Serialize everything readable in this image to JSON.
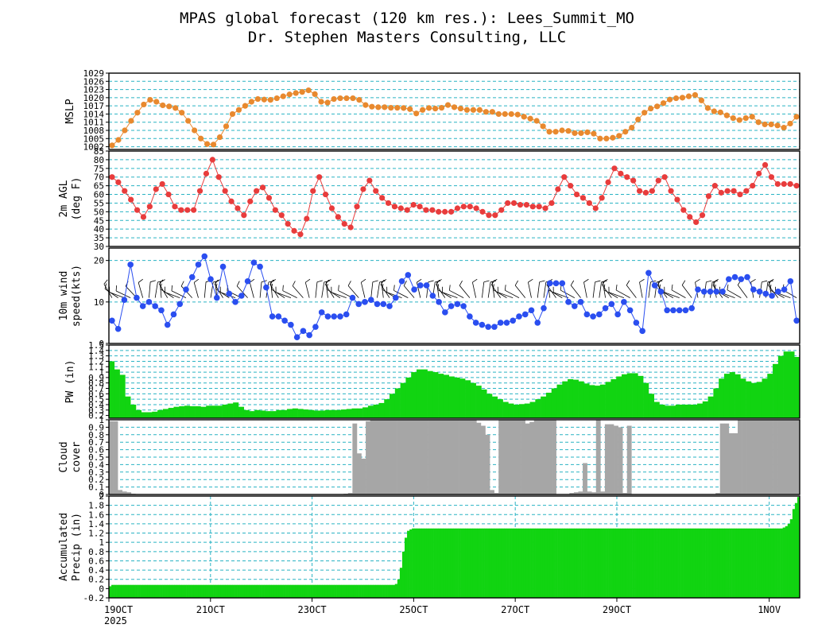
{
  "title": {
    "line1": "MPAS global forecast (120 km res.): Lees_Summit_MO",
    "line2": "Dr. Stephen Masters Consulting, LLC"
  },
  "colors": {
    "grid": "#2ab3c4",
    "mslp": "#e8892e",
    "temp": "#e83c3c",
    "wind": "#2a4ef0",
    "pw": "#11d411",
    "cloud": "#a6a6a6",
    "precip": "#11d411"
  },
  "chart_data": [
    {
      "type": "line",
      "id": "mslp",
      "ylabel": [
        "MSLP"
      ],
      "ylim": [
        1001,
        1029
      ],
      "ticks": [
        1002,
        1005,
        1008,
        1011,
        1014,
        1017,
        1020,
        1023,
        1026,
        1029
      ],
      "values": [
        1002.5,
        1004.5,
        1008,
        1011.5,
        1014.5,
        1017.5,
        1019.2,
        1018.5,
        1017.2,
        1016.8,
        1016.2,
        1014.5,
        1011.5,
        1008,
        1005,
        1003,
        1002.8,
        1005.5,
        1009.5,
        1014,
        1015.5,
        1017,
        1018.5,
        1019.5,
        1019.3,
        1019.2,
        1019.8,
        1020.5,
        1021.2,
        1021.7,
        1022.1,
        1022.7,
        1021.3,
        1018.5,
        1018.2,
        1019.5,
        1019.8,
        1019.8,
        1019.8,
        1019.2,
        1017.3,
        1016.7,
        1016.5,
        1016.5,
        1016.3,
        1016.3,
        1016.2,
        1015.8,
        1014.2,
        1015.5,
        1016.2,
        1016,
        1016.3,
        1017.3,
        1016.5,
        1016,
        1015.5,
        1015.5,
        1015.5,
        1014.8,
        1014.8,
        1014,
        1014,
        1014,
        1013.8,
        1013,
        1012.3,
        1011.5,
        1009.5,
        1007.5,
        1007.5,
        1008,
        1007.8,
        1007,
        1007,
        1007.3,
        1006.8,
        1005,
        1005,
        1005.3,
        1006,
        1007.5,
        1009,
        1012,
        1014.5,
        1016,
        1016.8,
        1018,
        1019.3,
        1019.8,
        1020,
        1020.5,
        1021,
        1019,
        1016.2,
        1015,
        1014.6,
        1013.5,
        1012.5,
        1011.8,
        1012.5,
        1013,
        1011,
        1010.2,
        1010.2,
        1009.8,
        1009,
        1010.5,
        1013
      ]
    },
    {
      "type": "line",
      "id": "temp",
      "ylabel": [
        "2m AGL",
        "(deg F)"
      ],
      "ylim": [
        30,
        85
      ],
      "ticks": [
        30,
        35,
        40,
        45,
        50,
        55,
        60,
        65,
        70,
        75,
        80,
        85
      ],
      "values": [
        70,
        67,
        62,
        57,
        51,
        47,
        53,
        63,
        66,
        60,
        53,
        51,
        51,
        51,
        62,
        72,
        80,
        70,
        62,
        56,
        52,
        48,
        56,
        62,
        64,
        58,
        51,
        48,
        43,
        39,
        37,
        46,
        62,
        70,
        60,
        52,
        47,
        43,
        41,
        53,
        63,
        68,
        62,
        58,
        55,
        53,
        52,
        51,
        54,
        53,
        51,
        51,
        50,
        50,
        50,
        52,
        53,
        53,
        52,
        50,
        48,
        48,
        51,
        55,
        55,
        54,
        54,
        53,
        53,
        52,
        55,
        63,
        70,
        65,
        60,
        58,
        55,
        52,
        58,
        67,
        75,
        72,
        70,
        68,
        62,
        61,
        62,
        68,
        70,
        62,
        57,
        51,
        47,
        44,
        48,
        59,
        65,
        61,
        62,
        62,
        60,
        62,
        65,
        72,
        77,
        70,
        66,
        66,
        66,
        65
      ]
    },
    {
      "type": "line",
      "id": "wind",
      "ylabel": [
        "10m wind",
        "speed(kts)"
      ],
      "ylim": [
        0,
        23
      ],
      "ticks": [
        0,
        10,
        20
      ],
      "values": [
        5.5,
        3.5,
        10.5,
        19,
        11,
        9,
        10,
        9,
        8,
        4.5,
        7,
        9.5,
        13,
        16,
        19,
        21,
        15.5,
        11,
        18.5,
        12,
        10,
        11.5,
        15,
        19.5,
        18.5,
        13.5,
        6.5,
        6.5,
        5.5,
        4.5,
        1.5,
        3,
        2,
        4,
        7.5,
        6.5,
        6.5,
        6.5,
        7,
        11,
        9.5,
        10,
        10.5,
        9.5,
        9.5,
        9,
        11,
        15,
        16.5,
        13,
        14,
        14,
        11.5,
        10,
        7.5,
        9,
        9.5,
        9,
        6.5,
        5,
        4.5,
        4,
        4,
        5,
        5,
        5.5,
        6.5,
        7,
        8,
        5,
        8.5,
        14.5,
        14.5,
        14.5,
        10,
        9,
        10,
        7,
        6.5,
        7,
        8.5,
        9.5,
        7,
        10,
        8,
        5,
        3,
        17,
        14,
        12.5,
        8,
        8,
        8,
        8,
        8.5,
        13,
        12.5,
        12.5,
        12.5,
        12.5,
        15.5,
        16,
        15.5,
        16,
        13,
        12.5,
        12,
        11.5,
        12.5,
        13,
        15,
        5.5
      ]
    },
    {
      "type": "bar",
      "id": "pw",
      "ylabel": [
        "PW (in)"
      ],
      "ylim": [
        0.15,
        1.5
      ],
      "ticks": [
        0.2,
        0.3,
        0.4,
        0.5,
        0.6,
        0.7,
        0.8,
        0.9,
        1,
        1.1,
        1.2,
        1.3,
        1.4,
        1.5
      ],
      "tick_labels": [
        "0.2",
        "0.3",
        "0.4",
        "0.5",
        "0.6",
        "0.7",
        "0.8",
        "0.9",
        "1",
        "1.1",
        "1.2",
        "1.3",
        "1.4",
        "1.5"
      ],
      "values": [
        1.2,
        1.05,
        0.95,
        0.55,
        0.4,
        0.3,
        0.26,
        0.26,
        0.27,
        0.3,
        0.32,
        0.34,
        0.36,
        0.37,
        0.38,
        0.37,
        0.37,
        0.36,
        0.38,
        0.38,
        0.38,
        0.4,
        0.42,
        0.44,
        0.36,
        0.3,
        0.28,
        0.3,
        0.29,
        0.28,
        0.28,
        0.3,
        0.3,
        0.32,
        0.33,
        0.32,
        0.31,
        0.3,
        0.29,
        0.29,
        0.3,
        0.3,
        0.3,
        0.31,
        0.32,
        0.33,
        0.33,
        0.35,
        0.38,
        0.4,
        0.43,
        0.5,
        0.6,
        0.7,
        0.8,
        0.9,
        1,
        1.05,
        1.05,
        1.02,
        1,
        0.97,
        0.95,
        0.92,
        0.9,
        0.88,
        0.85,
        0.8,
        0.75,
        0.68,
        0.6,
        0.55,
        0.5,
        0.45,
        0.42,
        0.4,
        0.41,
        0.42,
        0.45,
        0.5,
        0.55,
        0.62,
        0.7,
        0.77,
        0.83,
        0.87,
        0.86,
        0.83,
        0.79,
        0.76,
        0.75,
        0.77,
        0.82,
        0.87,
        0.92,
        0.96,
        0.98,
        0.98,
        0.93,
        0.8,
        0.6,
        0.45,
        0.4,
        0.38,
        0.38,
        0.4,
        0.4,
        0.4,
        0.4,
        0.42,
        0.46,
        0.55,
        0.7,
        0.88,
        0.97,
        1,
        0.96,
        0.88,
        0.83,
        0.8,
        0.82,
        0.88,
        0.97,
        1.15,
        1.3,
        1.38,
        1.38,
        1.28
      ]
    },
    {
      "type": "bar",
      "id": "cloud",
      "ylabel": [
        "Cloud",
        "cover"
      ],
      "ylim": [
        0,
        1
      ],
      "ticks": [
        0,
        0.1,
        0.2,
        0.3,
        0.4,
        0.5,
        0.6,
        0.7,
        0.8,
        0.9,
        1
      ],
      "tick_labels": [
        "0",
        "0.1",
        "0.2",
        "0.3",
        "0.4",
        "0.5",
        "0.6",
        "0.7",
        "0.8",
        "0.9",
        "1"
      ],
      "values": [
        0.98,
        0.98,
        0.06,
        0.04,
        0.03,
        0.01,
        0,
        0,
        0,
        0,
        0,
        0,
        0,
        0,
        0,
        0,
        0,
        0,
        0,
        0,
        0,
        0,
        0,
        0,
        0,
        0,
        0,
        0,
        0,
        0,
        0,
        0,
        0,
        0,
        0,
        0,
        0,
        0,
        0,
        0,
        0,
        0,
        0,
        0,
        0,
        0,
        0,
        0,
        0,
        0,
        0,
        0,
        0,
        0.01,
        0.02,
        0.95,
        0.55,
        0.48,
        0.98,
        1,
        1,
        1,
        1,
        1,
        1,
        1,
        1,
        1,
        1,
        1,
        1,
        1,
        1,
        1,
        1,
        1,
        1,
        1,
        1,
        1,
        1,
        1,
        1,
        0.96,
        0.92,
        0.8,
        0.06,
        0.02,
        1,
        1,
        1,
        1,
        1,
        1,
        0.95,
        0.97,
        1,
        1,
        1,
        1,
        1,
        0,
        0,
        0,
        0.02,
        0.03,
        0.04,
        0.42,
        0.04,
        0.03,
        1,
        0.04,
        0.94,
        0.94,
        0.92,
        0.9,
        0.02,
        0.92,
        0,
        0,
        0,
        0,
        0,
        0,
        0,
        0,
        0,
        0,
        0,
        0,
        0,
        0,
        0,
        0,
        0,
        0,
        0,
        0.02,
        0.95,
        0.95,
        0.82,
        0.82,
        1,
        1,
        1,
        1,
        1,
        1,
        1,
        1,
        1,
        1,
        1,
        1,
        1,
        1
      ]
    },
    {
      "type": "area",
      "id": "precip",
      "ylabel": [
        "Accumulated",
        "Precip (in)"
      ],
      "ylim": [
        -0.2,
        2
      ],
      "ticks": [
        -0.2,
        0,
        0.2,
        0.4,
        0.6,
        0.8,
        1,
        1.2,
        1.4,
        1.6,
        1.8,
        2
      ],
      "tick_labels": [
        "-0.2",
        "0",
        "0.2",
        "0.4",
        "0.6",
        "0.8",
        "1",
        "1.2",
        "1.4",
        "1.6",
        "1.8",
        "2"
      ],
      "values": [
        0.05,
        0.08,
        0.08,
        0.08,
        0.08,
        0.08,
        0.08,
        0.08,
        0.08,
        0.08,
        0.08,
        0.08,
        0.08,
        0.08,
        0.08,
        0.08,
        0.08,
        0.08,
        0.08,
        0.08,
        0.08,
        0.08,
        0.08,
        0.08,
        0.08,
        0.08,
        0.08,
        0.08,
        0.08,
        0.08,
        0.08,
        0.08,
        0.08,
        0.08,
        0.08,
        0.08,
        0.08,
        0.08,
        0.08,
        0.08,
        0.08,
        0.08,
        0.08,
        0.08,
        0.08,
        0.08,
        0.08,
        0.08,
        0.08,
        0.08,
        0.08,
        0.08,
        0.08,
        0.08,
        0.08,
        0.08,
        0.08,
        0.08,
        0.08,
        0.08,
        0.08,
        0.08,
        0.08,
        0.08,
        0.08,
        0.08,
        0.08,
        0.08,
        0.08,
        0.08,
        0.08,
        0.08,
        0.08,
        0.08,
        0.08,
        0.08,
        0.08,
        0.08,
        0.08,
        0.08,
        0.08,
        0.08,
        0.08,
        0.08,
        0.08,
        0.08,
        0.08,
        0.08,
        0.08,
        0.08,
        0.08,
        0.08,
        0.08,
        0.08,
        0.08,
        0.08,
        0.08,
        0.08,
        0.08,
        0.08,
        0.08,
        0.08,
        0.08,
        0.08,
        0.08,
        0.08,
        0.08,
        0.08,
        0.08,
        0.08,
        0.08,
        0.08,
        0.08,
        0.08,
        0.08,
        0.08,
        0.08,
        0.08,
        0.1,
        0.2,
        0.45,
        0.8,
        1.1,
        1.25,
        1.28,
        1.3,
        1.3,
        1.3,
        1.3,
        1.3,
        1.3,
        1.3,
        1.3,
        1.3,
        1.3,
        1.3,
        1.3,
        1.3,
        1.3,
        1.3,
        1.3,
        1.3,
        1.3,
        1.3,
        1.3,
        1.3,
        1.3,
        1.3,
        1.3,
        1.3,
        1.3,
        1.3,
        1.3,
        1.3,
        1.3,
        1.3,
        1.3,
        1.3,
        1.3,
        1.3,
        1.3,
        1.3,
        1.3,
        1.3,
        1.3,
        1.3,
        1.3,
        1.3,
        1.3,
        1.3,
        1.3,
        1.3,
        1.3,
        1.3,
        1.3,
        1.3,
        1.3,
        1.3,
        1.3,
        1.3,
        1.3,
        1.3,
        1.3,
        1.3,
        1.3,
        1.3,
        1.3,
        1.3,
        1.3,
        1.3,
        1.3,
        1.3,
        1.3,
        1.3,
        1.3,
        1.3,
        1.3,
        1.3,
        1.3,
        1.3,
        1.3,
        1.3,
        1.3,
        1.3,
        1.3,
        1.3,
        1.3,
        1.3,
        1.3,
        1.3,
        1.3,
        1.3,
        1.3,
        1.3,
        1.3,
        1.3,
        1.3,
        1.3,
        1.3,
        1.3,
        1.3,
        1.3,
        1.3,
        1.3,
        1.3,
        1.3,
        1.3,
        1.3,
        1.3,
        1.3,
        1.3,
        1.3,
        1.3,
        1.3,
        1.3,
        1.3,
        1.3,
        1.3,
        1.3,
        1.3,
        1.3,
        1.3,
        1.3,
        1.3,
        1.3,
        1.3,
        1.3,
        1.3,
        1.3,
        1.3,
        1.3,
        1.3,
        1.3,
        1.3,
        1.3,
        1.3,
        1.3,
        1.3,
        1.3,
        1.3,
        1.3,
        1.3,
        1.3,
        1.3,
        1.3,
        1.3,
        1.3,
        1.3,
        1.3,
        1.3,
        1.3,
        1.3,
        1.3,
        1.3,
        1.3,
        1.3,
        1.3,
        1.3,
        1.32,
        1.35,
        1.4,
        1.5,
        1.72,
        1.85,
        1.98
      ]
    }
  ],
  "xaxis": {
    "tick_labels": [
      "19OCT",
      "21OCT",
      "23OCT",
      "25OCT",
      "27OCT",
      "29OCT",
      "1NOV"
    ],
    "year_label": "2025",
    "range_days": [
      0,
      13.6
    ],
    "tick_days": [
      0,
      2,
      4,
      6,
      8,
      10,
      13
    ]
  }
}
